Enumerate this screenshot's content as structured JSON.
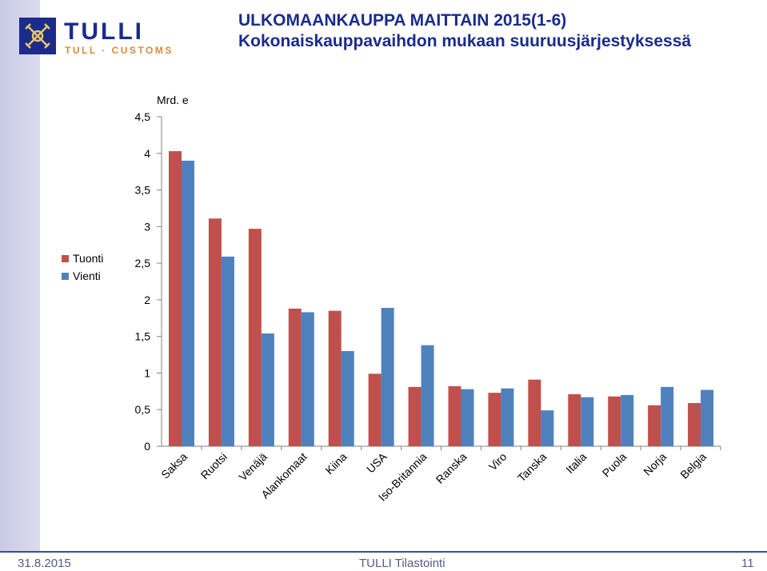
{
  "header": {
    "title": "ULKOMAANKAUPPA MAITTAIN 2015(1-6)",
    "subtitle": "Kokonaiskauppavaihdon mukaan suuruusjärjestyksessä"
  },
  "logo": {
    "name": "TULLI",
    "tagline": "TULL · CUSTOMS"
  },
  "footer": {
    "date": "31.8.2015",
    "center": "TULLI Tilastointi",
    "page": "11"
  },
  "colors": {
    "tuonti": "#c0504d",
    "vienti": "#4f81bd",
    "title": "#1a2b8c",
    "sidebar": "#c9cae6"
  },
  "chart_data": {
    "type": "bar",
    "ylabel": "Mrd. e",
    "ylim": [
      0,
      4.5
    ],
    "yticks": [
      "0",
      "0,5",
      "1",
      "1,5",
      "2",
      "2,5",
      "3",
      "3,5",
      "4",
      "4,5"
    ],
    "categories": [
      "Saksa",
      "Ruotsi",
      "Venäjä",
      "Alankomaat",
      "Kiina",
      "USA",
      "Iso-Britannia",
      "Ranska",
      "Viro",
      "Tanska",
      "Italia",
      "Puola",
      "Norja",
      "Belgia"
    ],
    "series": [
      {
        "name": "Tuonti",
        "values": [
          4.03,
          3.11,
          2.97,
          1.88,
          1.85,
          0.99,
          0.81,
          0.82,
          0.73,
          0.91,
          0.71,
          0.68,
          0.56,
          0.59
        ]
      },
      {
        "name": "Vienti",
        "values": [
          3.9,
          2.59,
          1.54,
          1.83,
          1.3,
          1.89,
          1.38,
          0.78,
          0.79,
          0.49,
          0.67,
          0.7,
          0.81,
          0.77
        ]
      }
    ],
    "grid": false,
    "legend": "left"
  }
}
